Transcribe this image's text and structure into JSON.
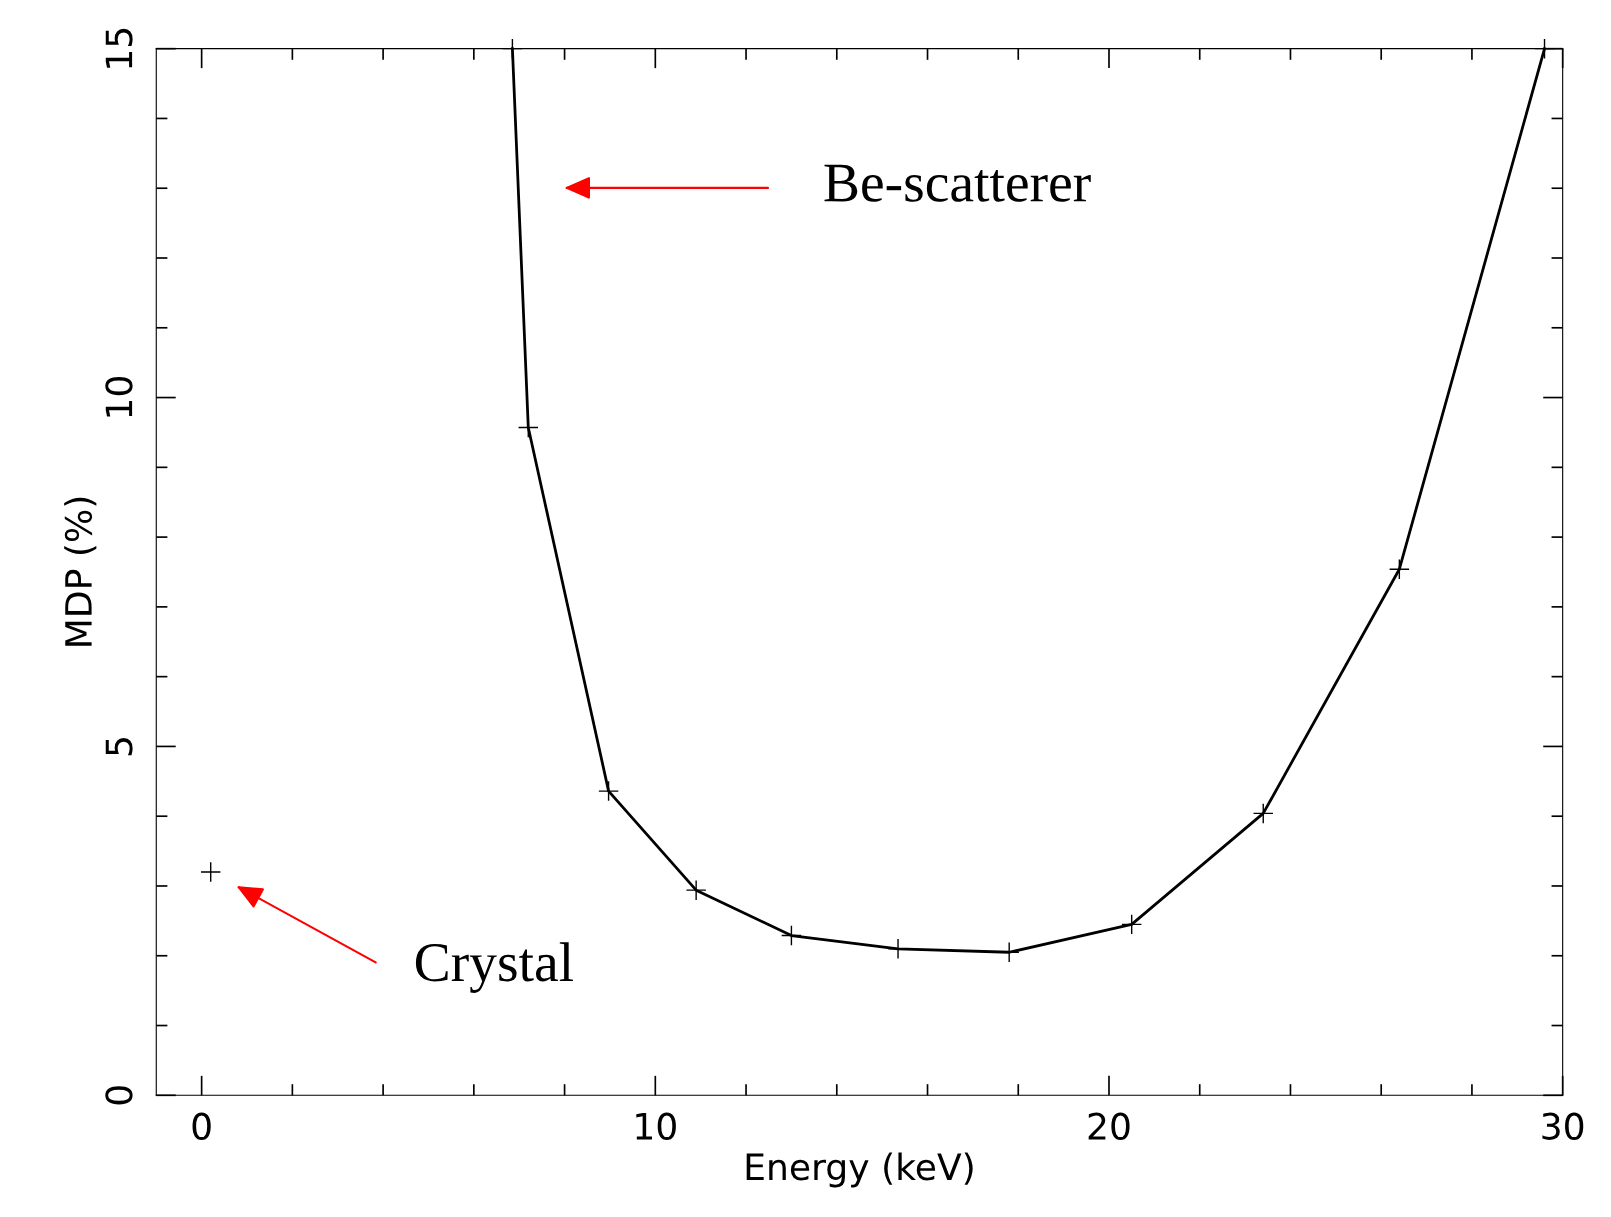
{
  "chart_data": {
    "type": "line",
    "xlabel": "Energy (keV)",
    "ylabel": "MDP (%)",
    "xlim": [
      -1,
      30
    ],
    "ylim": [
      0,
      15
    ],
    "xticks": [
      0,
      {
        "value": 2,
        "label": null
      },
      {
        "value": 4,
        "label": null
      },
      {
        "value": 6,
        "label": null
      },
      {
        "value": 8,
        "label": null
      },
      10,
      {
        "value": 12,
        "label": null
      },
      {
        "value": 14,
        "label": null
      },
      {
        "value": 16,
        "label": null
      },
      {
        "value": 18,
        "label": null
      },
      20,
      {
        "value": 22,
        "label": null
      },
      {
        "value": 24,
        "label": null
      },
      {
        "value": 26,
        "label": null
      },
      {
        "value": 28,
        "label": null
      },
      30
    ],
    "yticks": [
      0,
      {
        "value": 1,
        "label": null
      },
      {
        "value": 2,
        "label": null
      },
      {
        "value": 3,
        "label": null
      },
      {
        "value": 4,
        "label": null
      },
      5,
      {
        "value": 6,
        "label": null
      },
      {
        "value": 7,
        "label": null
      },
      {
        "value": 8,
        "label": null
      },
      {
        "value": 9,
        "label": null
      },
      10,
      {
        "value": 11,
        "label": null
      },
      {
        "value": 12,
        "label": null
      },
      {
        "value": 13,
        "label": null
      },
      {
        "value": 14,
        "label": null
      },
      15
    ],
    "grid": false,
    "marker": "cross",
    "line_style": "solid",
    "series": [
      {
        "color": "#000000",
        "x": [
          6.85,
          7.2,
          8.97,
          10.9,
          13.0,
          15.35,
          17.8,
          20.5,
          23.4,
          26.4,
          29.6
        ],
        "values": [
          15,
          9.57,
          4.36,
          2.94,
          2.29,
          2.1,
          2.05,
          2.45,
          4.04,
          7.54,
          15
        ]
      },
      {
        "type": "scatter",
        "color": "#000000",
        "x": [
          0.2
        ],
        "values": [
          3.2
        ]
      }
    ],
    "annotations": [
      "Be-scatterer",
      "Crystal"
    ]
  }
}
